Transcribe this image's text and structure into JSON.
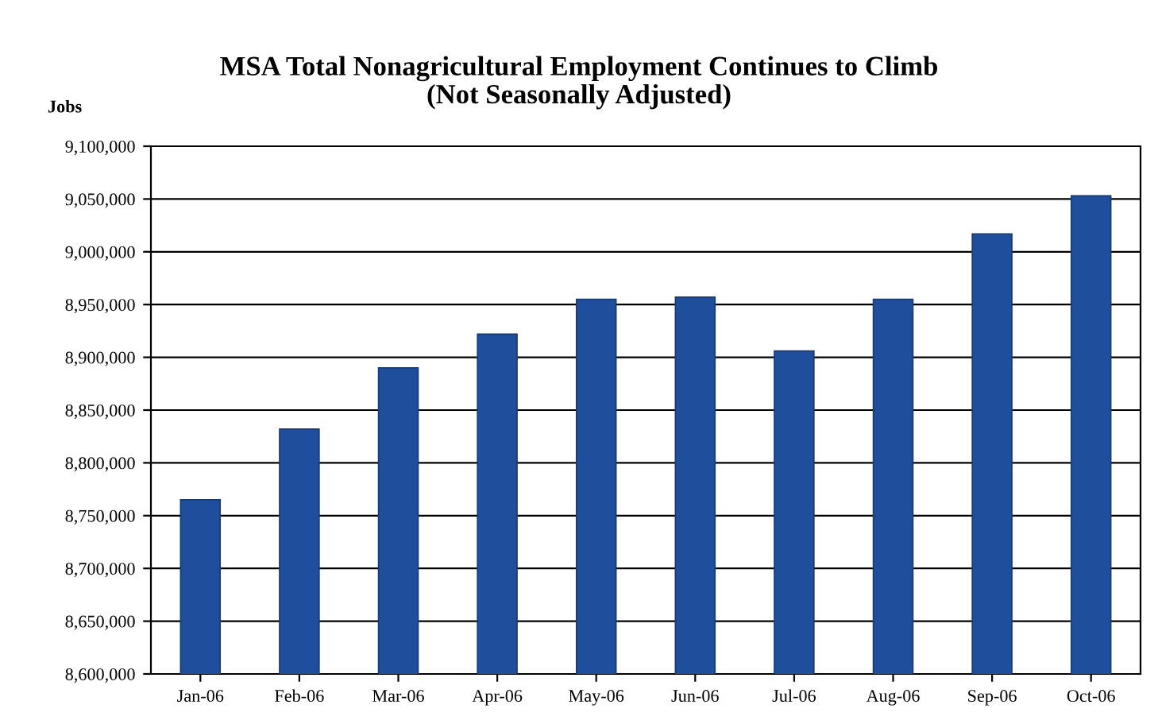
{
  "chart_data": {
    "type": "bar",
    "title": "MSA Total Nonagricultural Employment Continues to Climb\n(Not Seasonally Adjusted)",
    "ylabel": "Jobs",
    "categories": [
      "Jan-06",
      "Feb-06",
      "Mar-06",
      "Apr-06",
      "May-06",
      "Jun-06",
      "Jul-06",
      "Aug-06",
      "Sep-06",
      "Oct-06"
    ],
    "values": [
      8765000,
      8832000,
      8890000,
      8922000,
      8955000,
      8957000,
      8906000,
      8955000,
      9017000,
      9053000
    ],
    "color": "#1f4e9c",
    "ylim": [
      8600000,
      9100000
    ],
    "yticks": [
      {
        "value": 8600000,
        "label": "8,600,000"
      },
      {
        "value": 8650000,
        "label": "8,650,000"
      },
      {
        "value": 8700000,
        "label": "8,700,000"
      },
      {
        "value": 8750000,
        "label": "8,750,000"
      },
      {
        "value": 8800000,
        "label": "8,800,000"
      },
      {
        "value": 8850000,
        "label": "8,850,000"
      },
      {
        "value": 8900000,
        "label": "8,900,000"
      },
      {
        "value": 8950000,
        "label": "8,950,000"
      },
      {
        "value": 9000000,
        "label": "9,000,000"
      },
      {
        "value": 9050000,
        "label": "9,050,000"
      },
      {
        "value": 9100000,
        "label": "9,100,000"
      }
    ],
    "grid": "y"
  }
}
